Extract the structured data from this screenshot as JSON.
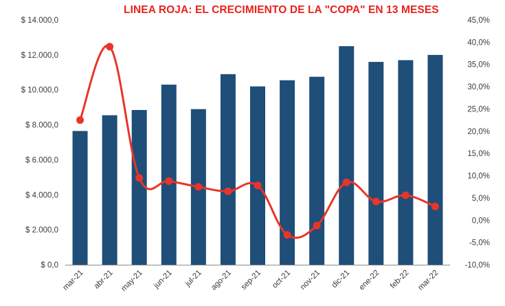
{
  "chart_data": {
    "type": "bar+line",
    "title": "LINEA ROJA: EL CRECIMIENTO DE LA \"COPA\" EN 13 MESES",
    "categories": [
      "mar-21",
      "abr-21",
      "may-21",
      "jun-21",
      "jul-21",
      "ago-21",
      "sep-21",
      "oct-21",
      "nov-21",
      "dic-21",
      "ene-22",
      "feb-22",
      "mar-22"
    ],
    "series": [
      {
        "values": [
          7650,
          8550,
          8850,
          10300,
          8900,
          10900,
          10200,
          10550,
          10750,
          12500,
          11600,
          11700,
          12000
        ],
        "chart": "bar",
        "axis": "left",
        "color": "#1f4e79"
      },
      {
        "values": [
          22.5,
          39.0,
          9.5,
          8.8,
          7.5,
          6.5,
          7.8,
          -3.3,
          -1.2,
          8.5,
          4.2,
          5.6,
          3.1
        ],
        "chart": "line",
        "axis": "right",
        "color": "#e8352a"
      }
    ],
    "y_left": {
      "ylim": [
        0,
        14000
      ],
      "ticks": [
        0,
        2000,
        4000,
        6000,
        8000,
        10000,
        12000,
        14000
      ],
      "tick_labels": [
        "$ 0,0",
        "$ 2.000,0",
        "$ 4.000,0",
        "$ 6.000,0",
        "$ 8.000,0",
        "$ 10.000,0",
        "$ 12.000,0",
        "$ 14.000,0"
      ]
    },
    "y_right": {
      "ylim": [
        -10,
        45
      ],
      "ticks": [
        -10,
        -5,
        0,
        5,
        10,
        15,
        20,
        25,
        30,
        35,
        40,
        45
      ],
      "tick_labels": [
        "-10,0%",
        "-5,0%",
        "0,0%",
        "5,0%",
        "10,0%",
        "15,0%",
        "20,0%",
        "25,0%",
        "30,0%",
        "35,0%",
        "40,0%",
        "45,0%"
      ]
    },
    "grid": false,
    "legend": "none"
  }
}
